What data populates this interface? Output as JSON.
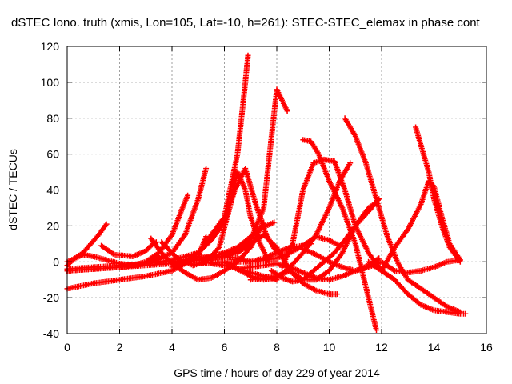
{
  "chart_data": {
    "type": "scatter",
    "title": "dSTEC Iono. truth (xmis, Lon=105, Lat=-10, h=261): STEC-STEC_elemax in phase cont",
    "xlabel": "GPS time / hours of day 229 of year 2014",
    "ylabel": "dSTEC  / TECUs",
    "xlim": [
      0,
      16
    ],
    "ylim": [
      -40,
      120
    ],
    "xticks": [
      "0",
      "2",
      "4",
      "6",
      "8",
      "10",
      "12",
      "14",
      "16"
    ],
    "yticks": [
      "-40",
      "-20",
      "0",
      "20",
      "40",
      "60",
      "80",
      "100",
      "120"
    ],
    "grid": true,
    "marker": "plus",
    "color": "#ff0000",
    "series": [
      {
        "x": [
          0.0,
          0.3,
          0.6,
          0.9,
          1.2,
          1.5
        ],
        "y": [
          0,
          2,
          5,
          10,
          15,
          21
        ]
      },
      {
        "x": [
          0.0,
          0.3,
          0.6,
          1.0,
          1.5,
          2.0,
          2.5,
          3.0,
          3.5
        ],
        "y": [
          -2,
          2,
          4,
          3,
          1,
          -1,
          -2,
          -1,
          2
        ]
      },
      {
        "x": [
          0.0,
          1.0,
          2.0,
          2.5,
          3.0,
          3.5,
          4.0,
          4.4,
          4.6
        ],
        "y": [
          -5,
          -4,
          -3,
          -2,
          0,
          5,
          15,
          30,
          37
        ]
      },
      {
        "x": [
          0.0,
          1.0,
          2.0,
          3.0,
          4.0,
          5.0,
          5.3
        ],
        "y": [
          -15,
          -12,
          -10,
          -8,
          -5,
          3,
          14
        ]
      },
      {
        "x": [
          0.0,
          1.0,
          2.0,
          3.0,
          4.0,
          4.5,
          5.0,
          5.3
        ],
        "y": [
          -5,
          -4,
          -3,
          -1,
          5,
          15,
          35,
          52
        ]
      },
      {
        "x": [
          0.0,
          1.0,
          2.0,
          3.0,
          4.0,
          5.0,
          6.0,
          6.5,
          6.8,
          6.9
        ],
        "y": [
          -4,
          -3,
          -2,
          -1,
          1,
          5,
          25,
          60,
          100,
          115
        ]
      },
      {
        "x": [
          0.0,
          1.0,
          2.0,
          3.0,
          4.0,
          5.0,
          6.0,
          6.5,
          7.0,
          7.5,
          7.8,
          8.0,
          8.2,
          8.4
        ],
        "y": [
          -5,
          -4,
          -3,
          -2,
          -1,
          1,
          3,
          6,
          12,
          30,
          70,
          96,
          90,
          84
        ]
      },
      {
        "x": [
          1.3,
          1.8,
          2.5,
          3.0,
          3.2,
          3.4
        ],
        "y": [
          9,
          4,
          3,
          6,
          9,
          11
        ]
      },
      {
        "x": [
          3.2,
          3.6,
          4.0,
          4.5,
          5.0,
          5.5,
          6.0,
          6.5,
          7.0,
          7.5
        ],
        "y": [
          13,
          5,
          -1,
          -6,
          -10,
          -9,
          -5,
          0,
          8,
          22
        ]
      },
      {
        "x": [
          3.6,
          4.2,
          4.8,
          5.3,
          5.8,
          6.2,
          6.5,
          6.8,
          7.0,
          7.3,
          7.7
        ],
        "y": [
          11,
          2,
          -2,
          0,
          8,
          30,
          50,
          40,
          25,
          12,
          0
        ]
      },
      {
        "x": [
          4.0,
          4.5,
          5.0,
          5.5,
          6.0,
          6.4,
          6.8,
          7.2,
          7.6,
          8.0
        ],
        "y": [
          -3,
          0,
          5,
          12,
          22,
          40,
          52,
          32,
          15,
          5
        ]
      },
      {
        "x": [
          4.0,
          5.0,
          6.0,
          6.5,
          7.0,
          7.5,
          8.0,
          8.5,
          9.0,
          9.5,
          10.0,
          10.4
        ],
        "y": [
          0,
          2,
          3,
          2,
          0,
          1,
          2,
          5,
          9,
          14,
          12,
          9
        ]
      },
      {
        "x": [
          5.0,
          5.5,
          6.0,
          6.5,
          7.0,
          7.3,
          7.6,
          7.9
        ],
        "y": [
          2,
          3,
          5,
          8,
          14,
          18,
          20,
          22
        ]
      },
      {
        "x": [
          5.0,
          6.0,
          7.0,
          7.5,
          8.0,
          8.5,
          9.0,
          9.3
        ],
        "y": [
          -1,
          0,
          0,
          2,
          5,
          8,
          9,
          10
        ]
      },
      {
        "x": [
          5.5,
          6.0,
          6.5,
          7.0,
          7.5,
          7.8,
          8.0
        ],
        "y": [
          -1,
          -2,
          -4,
          -6,
          -8,
          -9,
          -10
        ]
      },
      {
        "x": [
          5.8,
          6.5,
          7.0,
          7.5,
          8.0,
          8.5,
          9.0,
          9.5,
          10.0,
          10.3
        ],
        "y": [
          4,
          5,
          10,
          15,
          8,
          -5,
          -12,
          -16,
          -18,
          -18
        ]
      },
      {
        "x": [
          6.0,
          6.5,
          7.0,
          7.5,
          8.0,
          8.5,
          9.0,
          9.5,
          10.0,
          10.4,
          10.8
        ],
        "y": [
          0,
          -4,
          -8,
          -10,
          -9,
          -3,
          5,
          15,
          30,
          45,
          55
        ]
      },
      {
        "x": [
          6.5,
          7.5,
          8.0,
          8.5,
          9.0,
          9.5,
          10.0,
          10.5,
          11.0,
          11.5,
          11.9
        ],
        "y": [
          -4,
          -2,
          -1,
          -3,
          -6,
          -9,
          -10,
          -8,
          -5,
          -2,
          2
        ]
      },
      {
        "x": [
          7.0,
          7.5,
          8.0,
          8.5,
          9.0,
          9.5,
          10.0,
          10.5,
          11.0,
          11.5,
          11.8
        ],
        "y": [
          -10,
          -9,
          -8,
          -5,
          -10,
          -10,
          -5,
          5,
          20,
          30,
          33
        ]
      },
      {
        "x": [
          7.8,
          8.2,
          8.6,
          9.0,
          9.4,
          9.8,
          10.2,
          10.6,
          11.0,
          11.5,
          11.9
        ],
        "y": [
          -5,
          -9,
          -11,
          -10,
          -5,
          0,
          5,
          12,
          20,
          28,
          35
        ]
      },
      {
        "x": [
          8.2,
          8.6,
          9.0,
          9.4,
          9.8,
          10.2,
          10.6,
          11.0,
          11.5,
          12.0
        ],
        "y": [
          -3,
          10,
          40,
          55,
          57,
          56,
          40,
          20,
          5,
          -5
        ]
      },
      {
        "x": [
          9.0,
          9.3,
          9.6,
          10.0,
          10.5,
          11.0,
          11.5,
          11.8
        ],
        "y": [
          68,
          67,
          60,
          45,
          30,
          10,
          -20,
          -38
        ]
      },
      {
        "x": [
          9.0,
          9.5,
          10.0,
          10.5,
          11.0,
          11.5,
          12.0,
          12.5,
          13.0,
          13.5,
          14.0,
          14.5,
          15.0
        ],
        "y": [
          7,
          4,
          0,
          -3,
          -5,
          -3,
          0,
          -5,
          -6,
          -5,
          -3,
          0,
          1
        ]
      },
      {
        "x": [
          10.6,
          11.0,
          11.4,
          11.8,
          12.2,
          12.6,
          13.0,
          13.5,
          14.0,
          14.5,
          15.0
        ],
        "y": [
          80,
          70,
          55,
          35,
          15,
          0,
          -10,
          -15,
          -20,
          -25,
          -28
        ]
      },
      {
        "x": [
          11.5,
          12.0,
          12.5,
          13.0,
          13.5,
          14.0,
          14.5,
          15.0,
          15.2
        ],
        "y": [
          0,
          -5,
          -10,
          -18,
          -24,
          -27,
          -28,
          -29,
          -29
        ]
      },
      {
        "x": [
          12.0,
          12.5,
          13.0,
          13.5,
          13.8,
          14.0,
          14.3,
          14.6,
          15.0
        ],
        "y": [
          -5,
          8,
          18,
          32,
          45,
          42,
          25,
          10,
          1
        ]
      },
      {
        "x": [
          13.3,
          13.5,
          13.8,
          14.0,
          14.3,
          14.6,
          15.0
        ],
        "y": [
          75,
          65,
          50,
          35,
          20,
          8,
          0
        ]
      }
    ]
  }
}
